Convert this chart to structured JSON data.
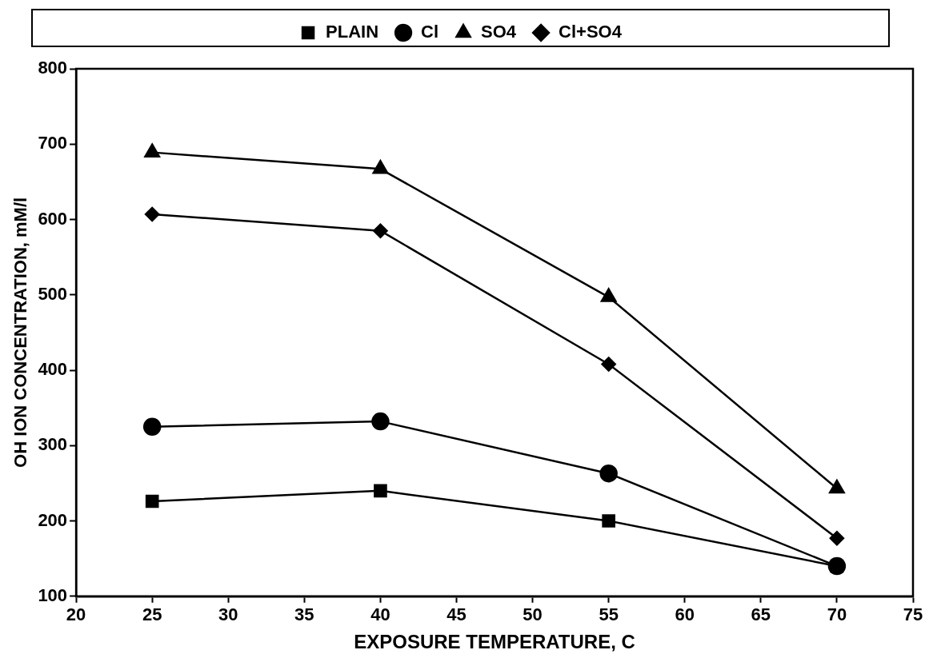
{
  "chart_data": {
    "type": "line",
    "xlabel": "EXPOSURE TEMPERATURE, C",
    "ylabel": "OH ION CONCENTRATION, mM/l",
    "x": [
      25,
      40,
      55,
      70
    ],
    "series": [
      {
        "name": "PLAIN",
        "color": "#000000",
        "marker": "square",
        "values": [
          226,
          240,
          200,
          140
        ]
      },
      {
        "name": "Cl",
        "color": "#000000",
        "marker": "circle",
        "values": [
          325,
          332,
          263,
          140
        ]
      },
      {
        "name": "SO4",
        "color": "#000000",
        "marker": "triangle",
        "values": [
          689,
          667,
          497,
          243
        ]
      },
      {
        "name": "Cl+SO4",
        "color": "#000000",
        "marker": "diamond",
        "values": [
          607,
          585,
          408,
          177
        ]
      }
    ],
    "xlim": [
      20,
      75
    ],
    "xticks": [
      20,
      25,
      30,
      35,
      40,
      45,
      50,
      55,
      60,
      65,
      70,
      75
    ],
    "ylim": [
      100,
      800
    ],
    "yticks": [
      100,
      200,
      300,
      400,
      500,
      600,
      700,
      800
    ],
    "grid": false,
    "legend": "top",
    "line_style": "solid"
  }
}
